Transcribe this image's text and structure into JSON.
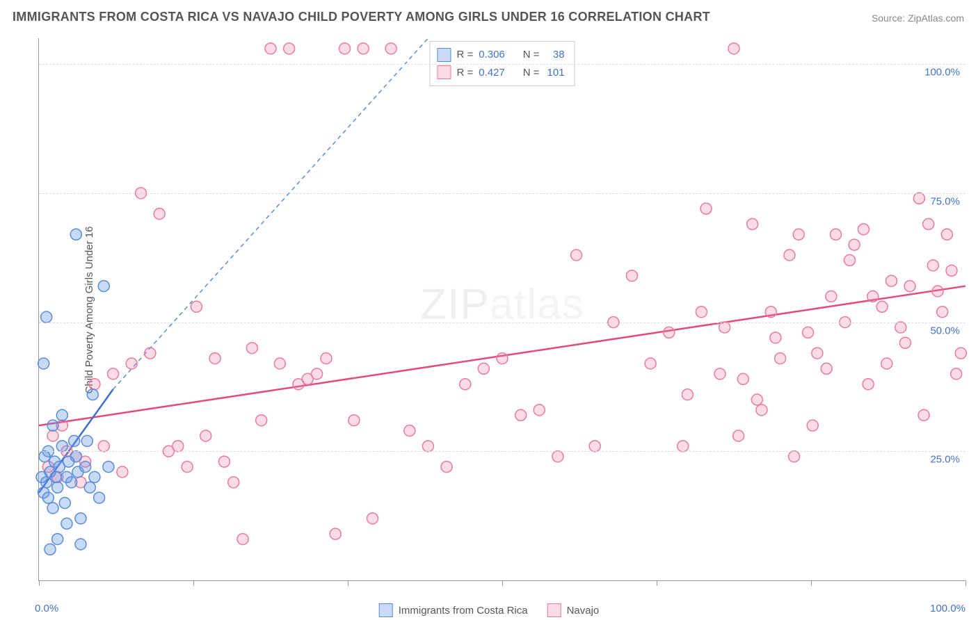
{
  "title": "IMMIGRANTS FROM COSTA RICA VS NAVAJO CHILD POVERTY AMONG GIRLS UNDER 16 CORRELATION CHART",
  "source": "Source: ZipAtlas.com",
  "ylabel": "Child Poverty Among Girls Under 16",
  "watermark_main": "ZIP",
  "watermark_sub": "atlas",
  "chart": {
    "type": "scatter",
    "background_color": "#ffffff",
    "grid_color": "#dddddd",
    "axis_color": "#999999",
    "label_color": "#4472c4",
    "text_color": "#555555",
    "xlim": [
      0,
      100
    ],
    "ylim": [
      0,
      105
    ],
    "y_gridlines": [
      25,
      50,
      75,
      100
    ],
    "y_tick_labels": [
      "25.0%",
      "50.0%",
      "75.0%",
      "100.0%"
    ],
    "x_ticks": [
      0,
      16.67,
      33.33,
      50,
      66.67,
      83.33,
      100
    ],
    "x_tick_labels_start": "0.0%",
    "x_tick_labels_end": "100.0%",
    "marker_radius": 8,
    "marker_stroke_width": 1.5,
    "trend_line_width": 2.5,
    "trend_dash_width": 1.5
  },
  "correlation_box": {
    "series1": {
      "r_label": "R =",
      "r": "0.306",
      "n_label": "N =",
      "n": "38"
    },
    "series2": {
      "r_label": "R =",
      "r": "0.427",
      "n_label": "N =",
      "n": "101"
    }
  },
  "legend": {
    "series1_label": "Immigrants from Costa Rica",
    "series2_label": "Navajo"
  },
  "series": [
    {
      "name": "Immigrants from Costa Rica",
      "color_fill": "rgba(100,150,230,0.35)",
      "color_stroke": "#5a8cd8",
      "color_solid": "#3d6fc4",
      "trend": {
        "x1": 0,
        "y1": 17,
        "x2": 8,
        "y2": 37,
        "extend_x": 42,
        "extend_y": 105
      },
      "points": [
        [
          0.5,
          17
        ],
        [
          0.8,
          19
        ],
        [
          1.2,
          21
        ],
        [
          1.5,
          14
        ],
        [
          1.7,
          23
        ],
        [
          1.0,
          25
        ],
        [
          2.0,
          18
        ],
        [
          2.2,
          22
        ],
        [
          2.8,
          15
        ],
        [
          3.0,
          20
        ],
        [
          2.5,
          26
        ],
        [
          3.5,
          19
        ],
        [
          4.0,
          24
        ],
        [
          4.2,
          21
        ],
        [
          1.2,
          6
        ],
        [
          2.0,
          8
        ],
        [
          4.5,
          7
        ],
        [
          5.0,
          22
        ],
        [
          5.5,
          18
        ],
        [
          6.0,
          20
        ],
        [
          6.5,
          16
        ],
        [
          0.5,
          42
        ],
        [
          0.8,
          51
        ],
        [
          4.0,
          67
        ],
        [
          7.0,
          57
        ],
        [
          7.5,
          22
        ],
        [
          3.0,
          11
        ],
        [
          4.5,
          12
        ],
        [
          5.2,
          27
        ],
        [
          1.5,
          30
        ],
        [
          0.3,
          20
        ],
        [
          0.6,
          24
        ],
        [
          1.0,
          16
        ],
        [
          1.8,
          20
        ],
        [
          2.5,
          32
        ],
        [
          3.2,
          23
        ],
        [
          3.8,
          27
        ],
        [
          5.8,
          36
        ]
      ]
    },
    {
      "name": "Navajo",
      "color_fill": "rgba(240,130,160,0.28)",
      "color_stroke": "#e87aa0",
      "color_solid": "#e14b7e",
      "trend": {
        "x1": 0,
        "y1": 30,
        "x2": 100,
        "y2": 57
      },
      "points": [
        [
          1,
          22
        ],
        [
          2,
          20
        ],
        [
          3,
          25
        ],
        [
          4,
          24
        ],
        [
          1.5,
          28
        ],
        [
          2.5,
          30
        ],
        [
          4.5,
          19
        ],
        [
          5,
          23
        ],
        [
          6,
          38
        ],
        [
          7,
          26
        ],
        [
          8,
          40
        ],
        [
          9,
          21
        ],
        [
          10,
          42
        ],
        [
          11,
          75
        ],
        [
          12,
          44
        ],
        [
          13,
          71
        ],
        [
          14,
          25
        ],
        [
          15,
          26
        ],
        [
          16,
          22
        ],
        [
          17,
          53
        ],
        [
          18,
          28
        ],
        [
          19,
          43
        ],
        [
          20,
          23
        ],
        [
          21,
          19
        ],
        [
          22,
          8
        ],
        [
          23,
          45
        ],
        [
          24,
          31
        ],
        [
          25,
          103
        ],
        [
          26,
          42
        ],
        [
          27,
          103
        ],
        [
          28,
          38
        ],
        [
          29,
          39
        ],
        [
          30,
          40
        ],
        [
          31,
          43
        ],
        [
          32,
          9
        ],
        [
          33,
          103
        ],
        [
          34,
          31
        ],
        [
          35,
          103
        ],
        [
          36,
          12
        ],
        [
          38,
          103
        ],
        [
          40,
          29
        ],
        [
          42,
          26
        ],
        [
          44,
          22
        ],
        [
          46,
          38
        ],
        [
          48,
          41
        ],
        [
          50,
          43
        ],
        [
          52,
          32
        ],
        [
          54,
          33
        ],
        [
          56,
          24
        ],
        [
          58,
          63
        ],
        [
          60,
          26
        ],
        [
          62,
          50
        ],
        [
          64,
          59
        ],
        [
          66,
          42
        ],
        [
          68,
          48
        ],
        [
          70,
          36
        ],
        [
          72,
          72
        ],
        [
          74,
          49
        ],
        [
          75,
          103
        ],
        [
          76,
          39
        ],
        [
          77,
          69
        ],
        [
          78,
          33
        ],
        [
          79,
          52
        ],
        [
          80,
          43
        ],
        [
          81,
          63
        ],
        [
          82,
          67
        ],
        [
          83,
          48
        ],
        [
          84,
          44
        ],
        [
          85,
          41
        ],
        [
          86,
          67
        ],
        [
          87,
          50
        ],
        [
          88,
          65
        ],
        [
          89,
          68
        ],
        [
          90,
          55
        ],
        [
          91,
          53
        ],
        [
          92,
          58
        ],
        [
          93,
          49
        ],
        [
          94,
          57
        ],
        [
          95,
          74
        ],
        [
          96,
          69
        ],
        [
          96.5,
          61
        ],
        [
          97,
          56
        ],
        [
          97.5,
          52
        ],
        [
          98,
          67
        ],
        [
          98.5,
          60
        ],
        [
          99,
          40
        ],
        [
          99.5,
          44
        ],
        [
          95.5,
          32
        ],
        [
          93.5,
          46
        ],
        [
          91.5,
          42
        ],
        [
          89.5,
          38
        ],
        [
          87.5,
          62
        ],
        [
          85.5,
          55
        ],
        [
          83.5,
          30
        ],
        [
          81.5,
          24
        ],
        [
          79.5,
          47
        ],
        [
          77.5,
          35
        ],
        [
          75.5,
          28
        ],
        [
          73.5,
          40
        ],
        [
          71.5,
          52
        ],
        [
          69.5,
          26
        ]
      ]
    }
  ]
}
